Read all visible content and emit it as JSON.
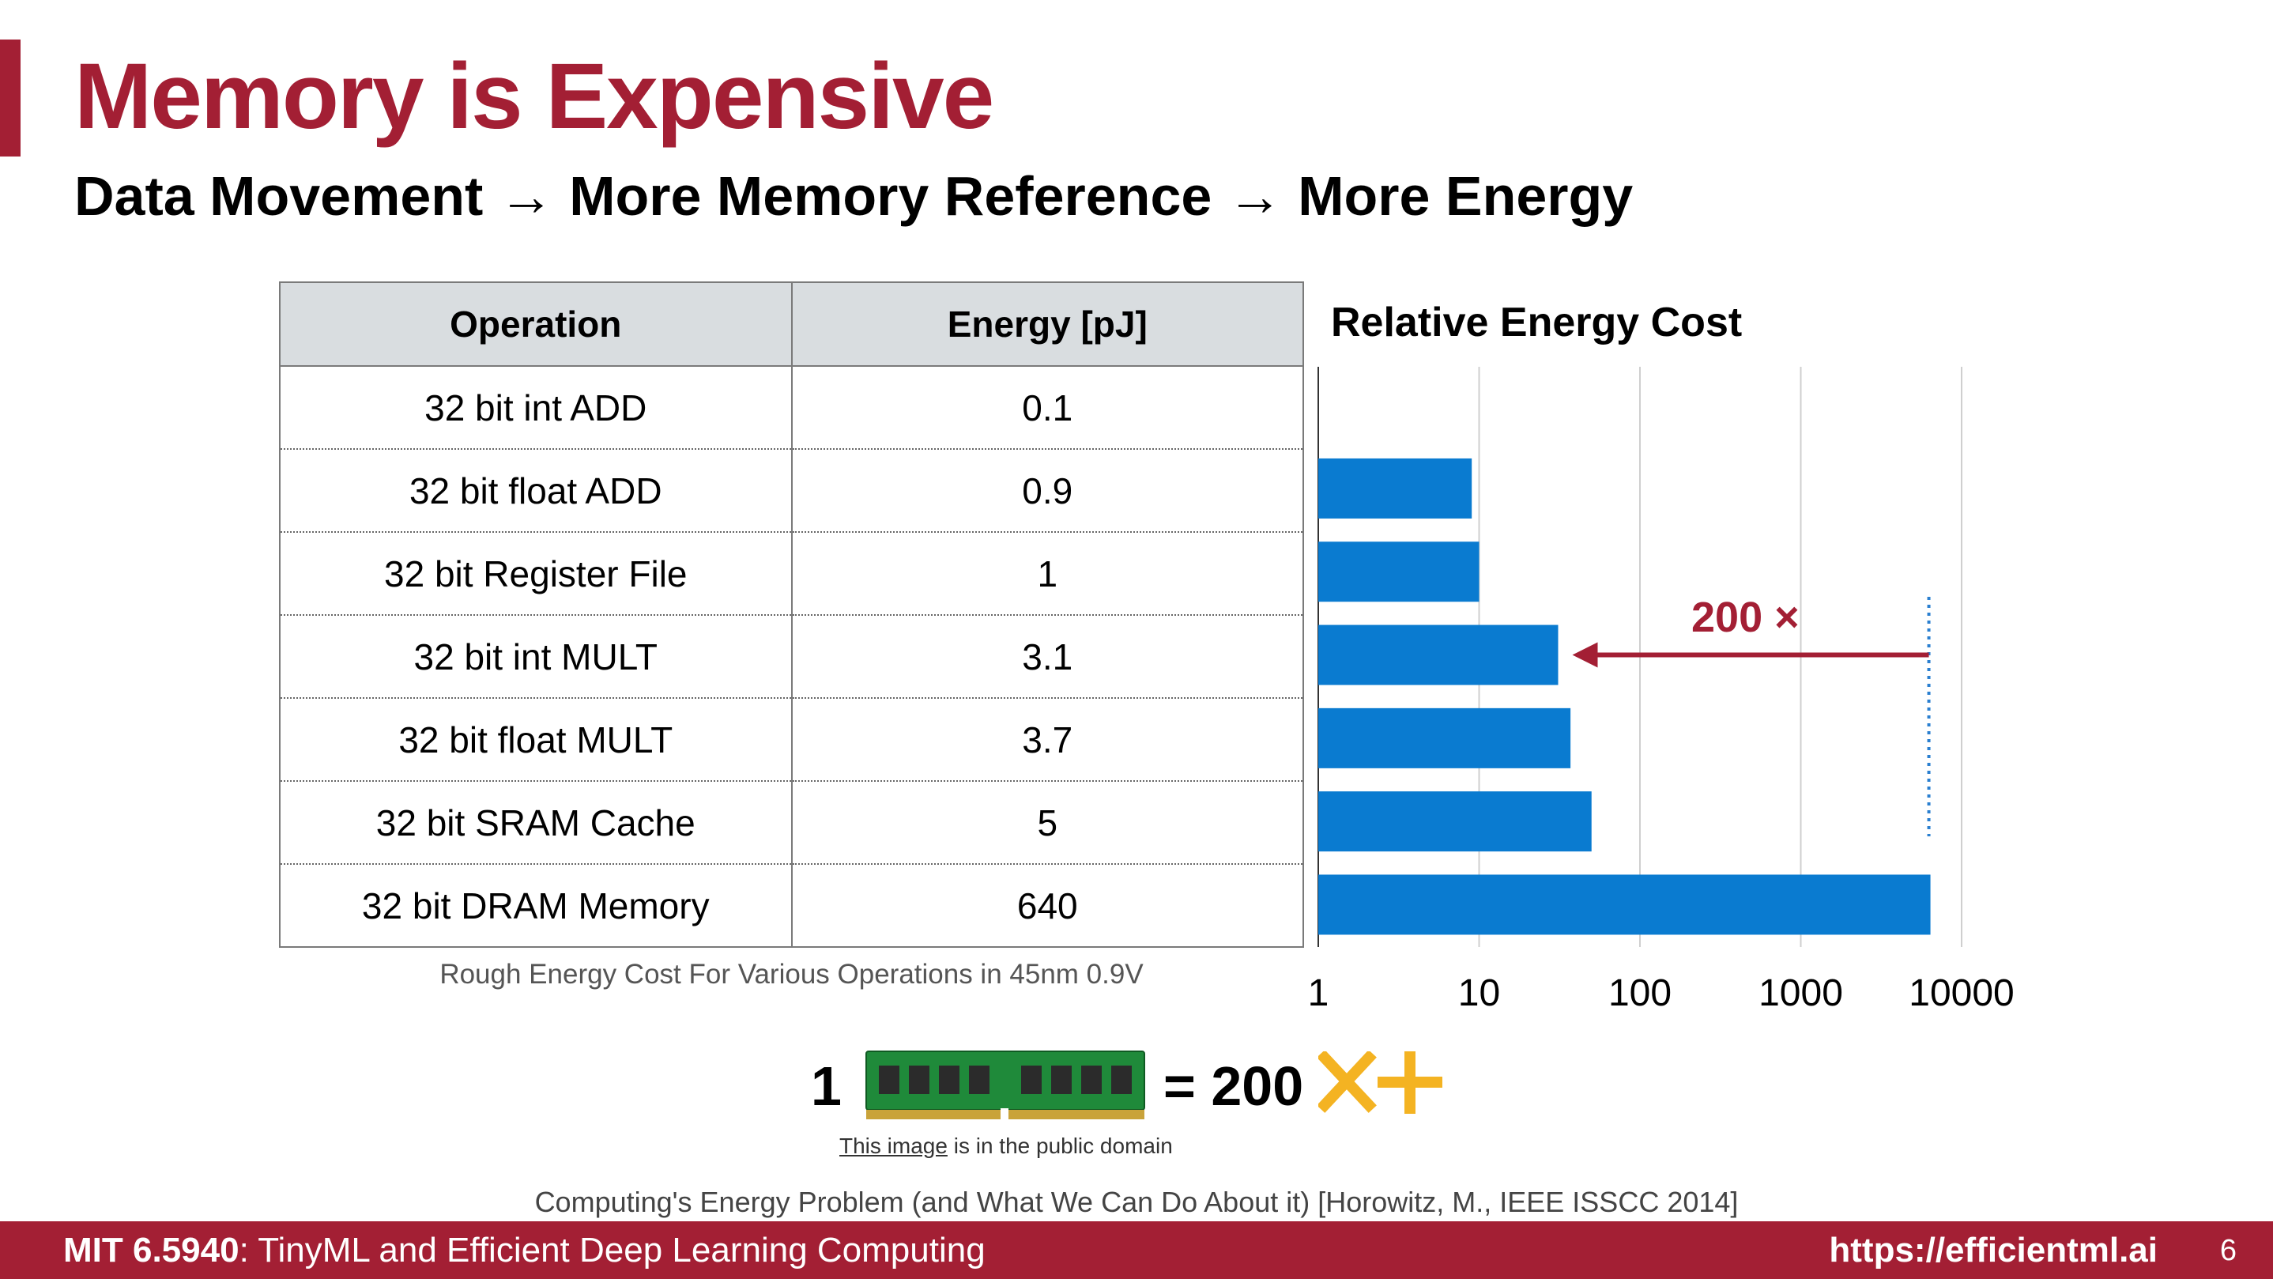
{
  "slide": {
    "title": "Memory is Expensive",
    "subtitle": "Data Movement → More Memory Reference → More Energy"
  },
  "table": {
    "headers": [
      "Operation",
      "Energy [pJ]"
    ],
    "rows": [
      {
        "operation": "32 bit int ADD",
        "energy": "0.1"
      },
      {
        "operation": "32 bit float ADD",
        "energy": "0.9"
      },
      {
        "operation": "32 bit Register File",
        "energy": "1"
      },
      {
        "operation": "32 bit int MULT",
        "energy": "3.1"
      },
      {
        "operation": "32 bit float MULT",
        "energy": "3.7"
      },
      {
        "operation": "32 bit SRAM Cache",
        "energy": "5"
      },
      {
        "operation": "32 bit DRAM Memory",
        "energy": "640"
      }
    ],
    "caption": "Rough Energy Cost For Various Operations in 45nm 0.9V"
  },
  "chart_data": {
    "type": "bar",
    "orientation": "horizontal",
    "title": "Relative Energy Cost",
    "xscale": "log",
    "xlim": [
      1,
      10000
    ],
    "x_ticks": [
      "1",
      "10",
      "100",
      "1000",
      "10000"
    ],
    "grid": true,
    "categories": [
      "32 bit int ADD",
      "32 bit float ADD",
      "32 bit Register File",
      "32 bit int MULT",
      "32 bit float MULT",
      "32 bit SRAM Cache",
      "32 bit DRAM Memory"
    ],
    "values": [
      1,
      9,
      10,
      31,
      37,
      50,
      6400
    ],
    "bar_color": "#0a7bd0",
    "annotation": {
      "text": "200 ×",
      "from_value": 6400,
      "to_value": 31,
      "row": 3,
      "color": "#a31f34"
    }
  },
  "equation": {
    "left": "1",
    "right": "= 200",
    "image_note_link": "This image",
    "image_note_rest": " is in the public domain",
    "ops_color": "#f4b322",
    "ram_icon": "dram-module-icon",
    "ops_icon": "multiply-plus-icon"
  },
  "citation": "Computing's Energy Problem (and What We Can Do About it) [Horowitz, M., IEEE ISSCC 2014]",
  "footer": {
    "course": "MIT 6.5940",
    "course_title": ": TinyML and Efficient Deep Learning Computing",
    "url": "https://efficientml.ai",
    "page": "6",
    "color": "#a31f34"
  }
}
